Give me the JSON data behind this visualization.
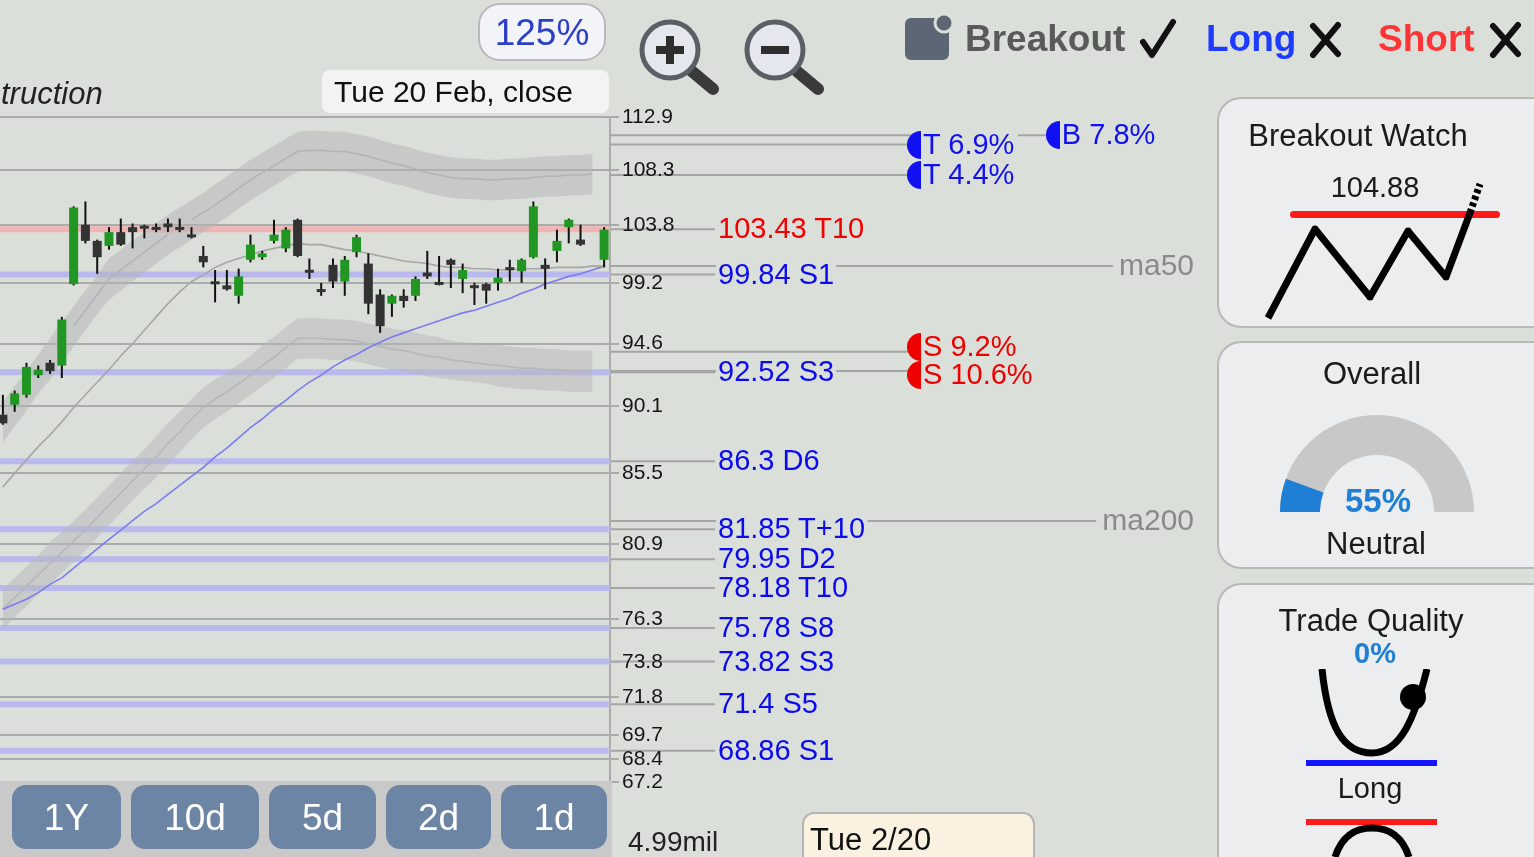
{
  "chart_data": [
    {
      "type": "candlestick",
      "title": "truction",
      "categories": [
        null,
        null,
        null,
        null,
        null,
        null,
        null,
        null,
        null,
        null,
        null,
        null,
        null,
        null,
        null,
        null,
        null,
        null,
        null,
        null,
        null,
        null,
        null,
        null,
        null,
        null,
        null,
        null,
        null,
        null,
        null,
        null,
        null,
        null,
        null,
        null,
        null,
        null,
        null,
        null,
        null,
        null,
        null,
        null,
        null,
        null,
        null,
        null,
        null,
        null,
        null,
        null
      ],
      "ohlc": [
        [
          89.5,
          90.9,
          88.8,
          88.9
        ],
        [
          90.2,
          91.2,
          89.7,
          91.0
        ],
        [
          90.9,
          93.2,
          90.7,
          92.9
        ],
        [
          92.3,
          93.0,
          92.1,
          92.7
        ],
        [
          93.2,
          93.4,
          92.4,
          92.6
        ],
        [
          93.0,
          96.6,
          92.1,
          96.4
        ],
        [
          99.1,
          105.3,
          99.0,
          105.2
        ],
        [
          103.8,
          105.7,
          102.3,
          102.5
        ],
        [
          102.5,
          102.6,
          99.9,
          101.2
        ],
        [
          102.1,
          103.6,
          101.8,
          103.2
        ],
        [
          103.2,
          104.3,
          102.1,
          102.2
        ],
        [
          103.6,
          103.9,
          101.9,
          103.2
        ],
        [
          103.7,
          103.8,
          102.7,
          103.5
        ],
        [
          103.6,
          103.9,
          103.2,
          103.4
        ],
        [
          103.9,
          104.3,
          103.2,
          103.6
        ],
        [
          103.6,
          104.3,
          103.2,
          103.4
        ],
        [
          103.0,
          103.6,
          102.7,
          102.8
        ],
        [
          101.3,
          102.1,
          100.4,
          100.8
        ],
        [
          99.3,
          100.2,
          97.7,
          99.1
        ],
        [
          99.0,
          100.2,
          98.6,
          98.7
        ],
        [
          98.2,
          100.3,
          97.6,
          99.7
        ],
        [
          101.0,
          103.0,
          100.8,
          102.2
        ],
        [
          101.2,
          101.7,
          101.0,
          101.5
        ],
        [
          102.5,
          104.2,
          102.3,
          103.0
        ],
        [
          101.9,
          103.6,
          101.6,
          103.4
        ],
        [
          104.2,
          104.3,
          101.2,
          101.3
        ],
        [
          100.2,
          101.1,
          99.5,
          100.0
        ],
        [
          98.7,
          99.2,
          98.2,
          98.5
        ],
        [
          100.6,
          101.1,
          98.8,
          99.3
        ],
        [
          99.3,
          101.3,
          98.2,
          101.0
        ],
        [
          101.6,
          103.0,
          101.2,
          102.8
        ],
        [
          100.7,
          101.5,
          96.8,
          97.6
        ],
        [
          98.3,
          98.7,
          95.4,
          95.9
        ],
        [
          97.6,
          98.3,
          96.6,
          98.2
        ],
        [
          98.2,
          98.7,
          97.3,
          97.8
        ],
        [
          98.2,
          99.7,
          97.8,
          99.5
        ],
        [
          100.0,
          101.7,
          99.5,
          99.7
        ],
        [
          99.2,
          101.3,
          99.0,
          99.1
        ],
        [
          101.0,
          101.1,
          98.8,
          100.6
        ],
        [
          99.5,
          100.7,
          98.4,
          100.2
        ],
        [
          99.0,
          99.2,
          97.5,
          98.8
        ],
        [
          99.1,
          99.2,
          97.6,
          98.6
        ],
        [
          99.2,
          100.3,
          98.6,
          99.6
        ],
        [
          100.4,
          101.0,
          99.3,
          100.2
        ],
        [
          100.1,
          101.1,
          99.2,
          101.0
        ],
        [
          101.2,
          105.7,
          101.1,
          105.3
        ],
        [
          100.6,
          101.1,
          98.7,
          100.3
        ],
        [
          101.7,
          103.4,
          100.8,
          102.5
        ],
        [
          103.6,
          104.3,
          102.3,
          104.2
        ],
        [
          102.6,
          103.8,
          102.1,
          102.2
        ],
        null,
        [
          101.0,
          103.6,
          100.4,
          103.4
        ]
      ],
      "colors": [
        "#333333",
        "#229622",
        "#229622",
        "#229622",
        "#333333",
        "#229622",
        "#229622",
        "#333333",
        "#333333",
        "#229622",
        "#333333",
        "#333333",
        "#333333",
        "#333333",
        "#333333",
        "#333333",
        "#333333",
        "#333333",
        "#333333",
        "#333333",
        "#229622",
        "#229622",
        "#229622",
        "#229622",
        "#229622",
        "#333333",
        "#333333",
        "#333333",
        "#333333",
        "#229622",
        "#229622",
        "#333333",
        "#333333",
        "#229622",
        "#333333",
        "#229622",
        "#333333",
        "#333333",
        "#333333",
        "#229622",
        "#333333",
        "#333333",
        "#229622",
        "#333333",
        "#229622",
        "#229622",
        "#333333",
        "#229622",
        "#229622",
        "#333333",
        null,
        "#229622"
      ],
      "series": [
        {
          "type": "line",
          "color": "#b2b3b6",
          "values": [
            null,
            null,
            null,
            null,
            null,
            null,
            95.9,
            97.1,
            98.3,
            99.5,
            100.2,
            100.9,
            101.6,
            102.3,
            103.0,
            null,
            104.2,
            104.8,
            105.4,
            106.1,
            106.8,
            107.5,
            108.1,
            108.7,
            109.3,
            109.9,
            110.0,
            110.0,
            109.9,
            109.9,
            109.7,
            109.5,
            109.2,
            108.9,
            108.7,
            108.4,
            108.1,
            107.9,
            107.7,
            107.6,
            107.6,
            107.5,
            107.5,
            107.6,
            107.6,
            107.7,
            107.8,
            107.8,
            107.9,
            107.9,
            108.0,
            null
          ],
          "lower": [
            87.6,
            88.7,
            89.8,
            91.0,
            92.0,
            93.2,
            94.4,
            95.6,
            96.8,
            97.9,
            98.6,
            99.3,
            100.0,
            100.7,
            101.4,
            102.0,
            102.6,
            103.2,
            103.8,
            104.4,
            105.1,
            105.8,
            106.4,
            107.0,
            107.6,
            108.2,
            108.3,
            108.3,
            108.2,
            108.2,
            108.0,
            107.8,
            107.5,
            107.2,
            107.0,
            106.7,
            106.4,
            106.2,
            106.0,
            105.9,
            105.9,
            105.8,
            105.8,
            105.9,
            105.9,
            106.0,
            106.1,
            106.1,
            106.2,
            106.2,
            106.3,
            null
          ],
          "upper": [
            90.4,
            91.5,
            92.6,
            93.8,
            95.0,
            96.2,
            97.4,
            98.6,
            99.8,
            101.1,
            101.8,
            102.5,
            103.2,
            103.9,
            104.6,
            105.2,
            105.8,
            106.4,
            107.1,
            107.8,
            108.5,
            109.2,
            109.8,
            110.4,
            111.0,
            111.6,
            111.7,
            111.7,
            111.6,
            111.6,
            111.4,
            111.2,
            110.9,
            110.6,
            110.4,
            110.1,
            109.8,
            109.6,
            109.4,
            109.3,
            109.3,
            109.2,
            109.2,
            109.3,
            109.3,
            109.4,
            109.5,
            109.5,
            109.6,
            109.6,
            109.7,
            null
          ]
        },
        {
          "type": "line",
          "color": "#b6b7ba",
          "values": [
            76.9,
            77.6,
            78.3,
            79.0,
            79.7,
            80.4,
            81.1,
            81.8,
            82.6,
            83.4,
            84.2,
            85.0,
            85.8,
            86.6,
            87.5,
            88.3,
            89.2,
            90.0,
            90.6,
            91.1,
            91.7,
            92.3,
            93.0,
            93.6,
            94.3,
            95.0,
            95.0,
            95.0,
            94.9,
            94.9,
            94.8,
            94.6,
            94.4,
            94.2,
            94.1,
            93.9,
            93.7,
            93.6,
            93.4,
            93.3,
            93.2,
            93.1,
            93.0,
            92.9,
            92.8,
            92.8,
            92.7,
            92.7,
            92.6,
            92.6,
            92.6,
            null
          ],
          "lower": [
            75.7,
            76.4,
            77.1,
            77.8,
            78.4,
            79.1,
            79.8,
            80.5,
            81.3,
            82.1,
            82.9,
            83.7,
            84.5,
            85.2,
            86.1,
            86.9,
            87.8,
            88.6,
            89.2,
            89.7,
            90.3,
            90.9,
            91.5,
            92.1,
            92.8,
            93.5,
            93.5,
            93.5,
            93.4,
            93.4,
            93.3,
            93.1,
            92.9,
            92.7,
            92.6,
            92.4,
            92.2,
            92.1,
            92.0,
            91.9,
            91.8,
            91.7,
            91.5,
            91.4,
            91.3,
            91.3,
            91.2,
            91.2,
            91.1,
            91.1,
            91.1,
            null
          ],
          "upper": [
            78.1,
            78.8,
            79.5,
            80.2,
            81.0,
            81.7,
            82.4,
            83.1,
            83.9,
            84.7,
            85.5,
            86.3,
            87.1,
            88.0,
            88.9,
            89.7,
            90.6,
            91.4,
            92.0,
            92.5,
            93.1,
            93.7,
            94.5,
            95.1,
            95.8,
            96.5,
            96.5,
            96.5,
            96.4,
            96.4,
            96.3,
            96.1,
            95.9,
            95.7,
            95.6,
            95.4,
            95.2,
            95.1,
            94.8,
            94.7,
            94.6,
            94.5,
            94.5,
            94.4,
            94.3,
            94.3,
            94.2,
            94.2,
            94.1,
            94.1,
            94.1,
            null
          ]
        },
        {
          "type": "line",
          "color": "#a6a7a5",
          "values": [
            84.6,
            85.5,
            86.4,
            87.3,
            88.1,
            89.0,
            90.0,
            90.9,
            91.8,
            92.7,
            93.7,
            94.6,
            95.6,
            96.6,
            97.6,
            98.5,
            99.3,
            99.8,
            100.4,
            100.8,
            101.1,
            101.4,
            101.7,
            101.9,
            102.1,
            102.3,
            102.2,
            102.2,
            102.0,
            101.8,
            101.7,
            101.5,
            101.3,
            101.1,
            100.9,
            100.8,
            100.7,
            100.5,
            100.4,
            100.4,
            100.3,
            100.3,
            100.2,
            100.2,
            100.3,
            100.3,
            100.3,
            100.4,
            100.4,
            100.4,
            100.5,
            100.5
          ]
        },
        {
          "type": "line",
          "name": "ma50",
          "color": "#7c7cf0",
          "values": [
            76.9,
            77.2,
            77.5,
            77.9,
            78.4,
            78.8,
            79.4,
            80.0,
            80.6,
            81.2,
            81.8,
            82.4,
            83.0,
            83.5,
            84.1,
            84.7,
            85.3,
            85.9,
            86.6,
            87.2,
            87.9,
            88.6,
            89.2,
            89.9,
            90.5,
            91.2,
            91.8,
            92.3,
            92.9,
            93.4,
            93.8,
            94.3,
            94.7,
            95.1,
            95.4,
            95.7,
            96.0,
            96.3,
            96.6,
            96.9,
            97.1,
            97.4,
            97.7,
            98.0,
            98.4,
            98.7,
            99.1,
            99.4,
            99.7,
            99.9,
            100.2,
            100.5
          ]
        }
      ],
      "ylim": [
        67.2,
        112.9
      ],
      "yticks": [
        67.2,
        68.4,
        69.7,
        71.8,
        73.8,
        76.3,
        80.9,
        85.5,
        90.1,
        94.6,
        99.2,
        103.8,
        108.3,
        112.9
      ],
      "log": "y",
      "grid": "y",
      "tick_labels": "y",
      "ref_lines": [
        {
          "axis": "y",
          "value": 103.43,
          "label": "103.43 T10",
          "color": "#f0b4b4"
        },
        {
          "axis": "y",
          "value": 99.84,
          "label": "99.84 S1",
          "color": "#b9b9ee"
        },
        {
          "axis": "y",
          "value": 92.52,
          "label": "92.52 S3",
          "color": "#b9b9ee"
        },
        {
          "axis": "y",
          "value": 86.3,
          "label": "86.3 D6",
          "color": "#b9b9ee"
        },
        {
          "axis": "y",
          "value": 81.85,
          "label": "81.85 T+10",
          "color": "#b9b9ee"
        },
        {
          "axis": "y",
          "value": 79.95,
          "label": "79.95 D2",
          "color": "#b9b9ee"
        },
        {
          "axis": "y",
          "value": 78.18,
          "label": "78.18 T10",
          "color": "#b9b9ee"
        },
        {
          "axis": "y",
          "value": 75.78,
          "label": "75.78 S8",
          "color": "#b9b9ee"
        },
        {
          "axis": "y",
          "value": 73.82,
          "label": "73.82 S3",
          "color": "#b9b9ee"
        },
        {
          "axis": "y",
          "value": 71.4,
          "label": "71.4 S5",
          "color": "#b9b9ee"
        },
        {
          "axis": "y",
          "value": 68.86,
          "label": "68.86 S1",
          "color": "#b9b9ee"
        },
        {
          "axis": "y",
          "value": 110.5,
          "label": "T 6.9%",
          "color": "#a5a5a5",
          "line_style": "solid"
        },
        {
          "axis": "y",
          "value": 111.3,
          "label": "B 7.8%",
          "color": "#a5a5a5",
          "line_style": "solid"
        },
        {
          "axis": "y",
          "value": 107.9,
          "label": "T 4.4%",
          "color": "#a5a5a5",
          "line_style": "solid"
        },
        {
          "axis": "y",
          "value": 94.0,
          "label": "S 9.2%",
          "color": "#a5a5a5",
          "line_style": "solid"
        },
        {
          "axis": "y",
          "value": 92.6,
          "label": "S 10.6%",
          "color": "#a5a5a5",
          "line_style": "solid"
        }
      ],
      "annotations": [
        "Tue 20 Feb, close",
        "Tue 2/20",
        "4.99mil",
        "ma200"
      ]
    },
    {
      "type": "other",
      "annotations": [
        "125%",
        "Breakout",
        "Long",
        "Short"
      ]
    },
    {
      "type": "other",
      "annotations": [
        "1Y",
        "10d",
        "5d",
        "2d",
        "1d"
      ]
    },
    {
      "type": "other",
      "title": "Breakout Watch",
      "annotations": [
        "104.88"
      ]
    },
    {
      "type": "other",
      "title": "Overall",
      "annotations": [
        "55%",
        "Neutral"
      ]
    },
    {
      "type": "other",
      "title": "Trade Quality",
      "annotations": [
        "0%",
        "Long"
      ]
    }
  ]
}
